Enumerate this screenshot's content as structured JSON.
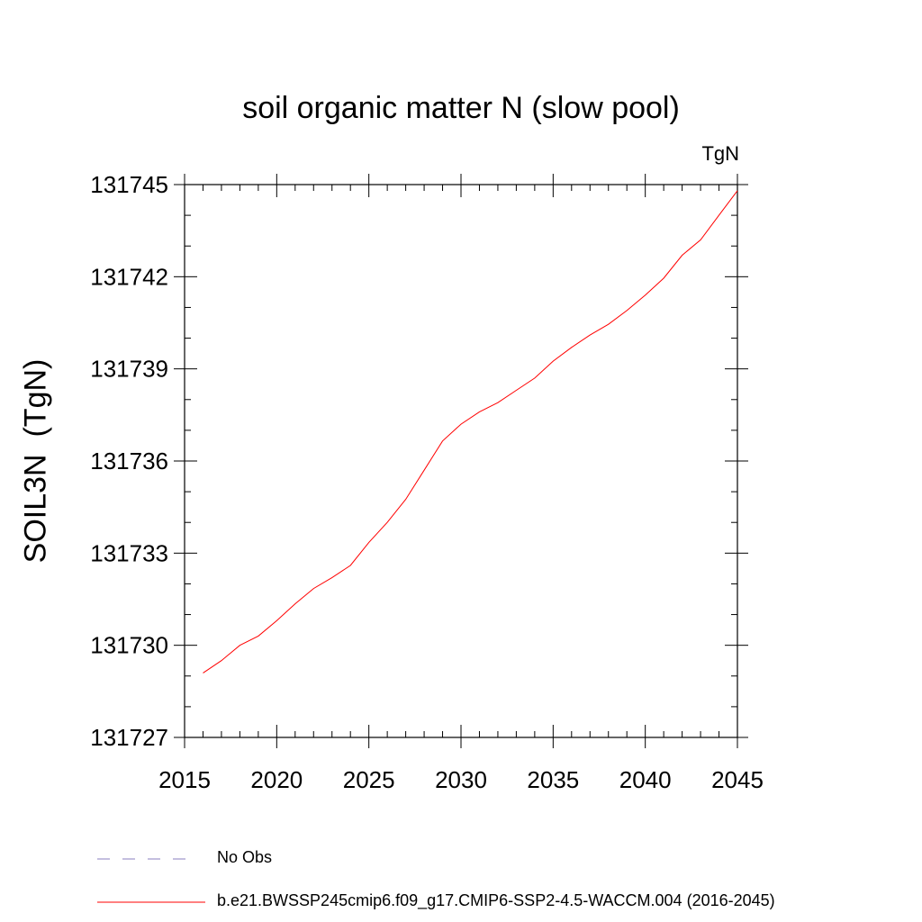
{
  "chart_data": {
    "type": "line",
    "title": "soil organic matter N (slow pool)",
    "units_label": "TgN",
    "ylabel": "SOIL3N  (TgN)",
    "xlabel": "",
    "xlim": [
      2015,
      2045
    ],
    "ylim": [
      131727,
      131745
    ],
    "x_ticks": [
      2015,
      2020,
      2025,
      2030,
      2035,
      2040,
      2045
    ],
    "y_ticks": [
      131727,
      131730,
      131733,
      131736,
      131739,
      131742,
      131745
    ],
    "series": [
      {
        "name": "b.e21.BWSSP245cmip6.f09_g17.CMIP6-SSP2-4.5-WACCM.004 (2016-2045)",
        "color": "#ff0000",
        "x": [
          2016,
          2017,
          2018,
          2019,
          2020,
          2021,
          2022,
          2023,
          2024,
          2025,
          2026,
          2027,
          2028,
          2029,
          2030,
          2031,
          2032,
          2033,
          2034,
          2035,
          2036,
          2037,
          2038,
          2039,
          2040,
          2041,
          2042,
          2043,
          2044,
          2045
        ],
        "y": [
          131729.1,
          131729.5,
          131730.0,
          131730.3,
          131730.8,
          131731.35,
          131731.85,
          131732.2,
          131732.6,
          131733.35,
          131734.0,
          131734.75,
          131735.7,
          131736.65,
          131737.2,
          131737.6,
          131737.9,
          131738.3,
          131738.7,
          131739.25,
          131739.7,
          131740.1,
          131740.45,
          131740.9,
          131741.4,
          131741.95,
          131742.7,
          131743.2,
          131744.0,
          131744.8
        ]
      }
    ],
    "legend": [
      {
        "label": "No Obs",
        "style": "dashed",
        "color": "#8a7fbf"
      },
      {
        "label": "b.e21.BWSSP245cmip6.f09_g17.CMIP6-SSP2-4.5-WACCM.004 (2016-2045)",
        "style": "solid",
        "color": "#ff0000"
      }
    ],
    "legend_position": "bottom",
    "grid": false
  }
}
